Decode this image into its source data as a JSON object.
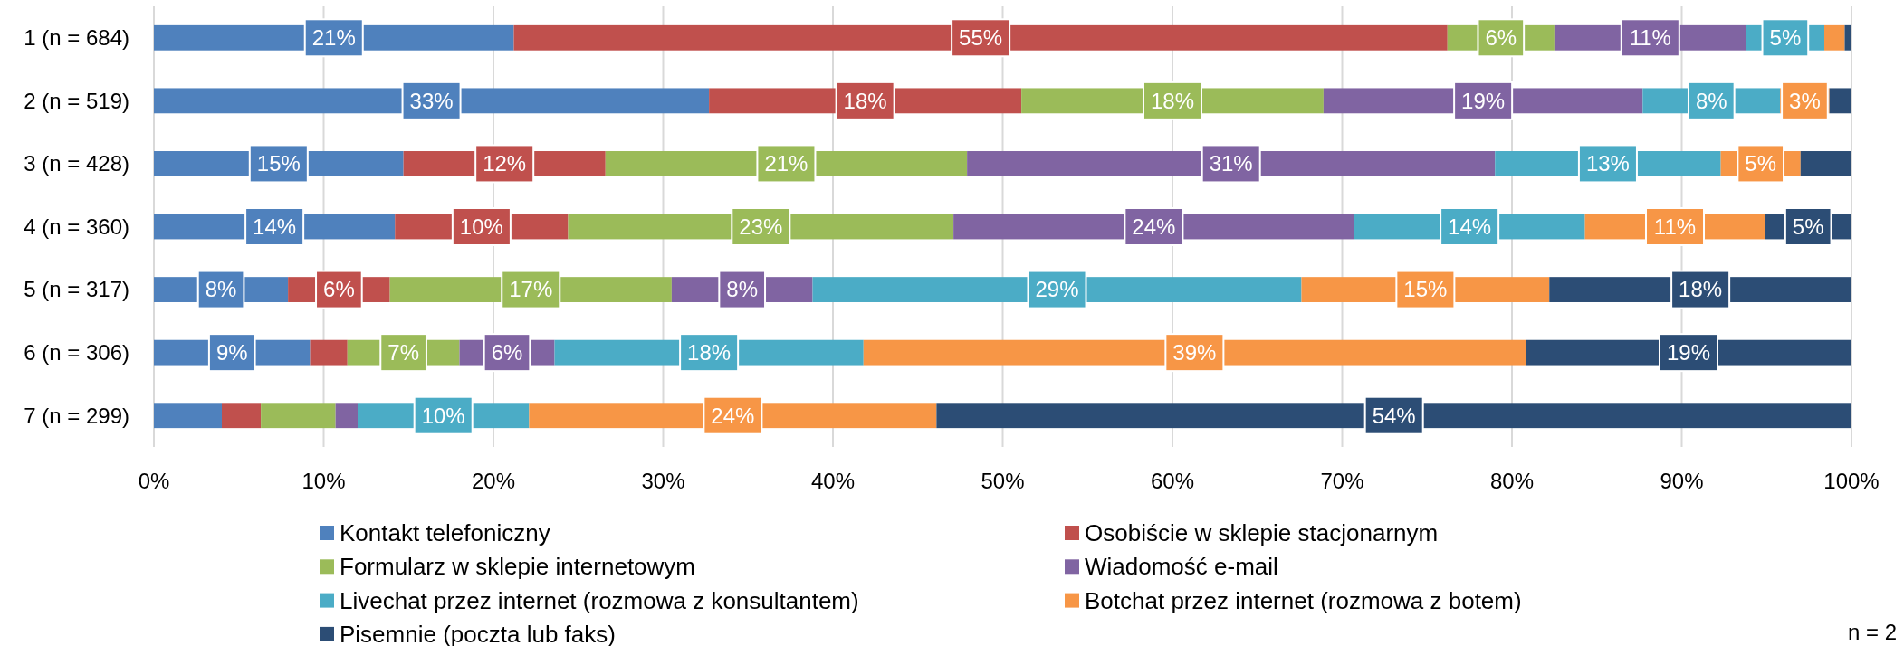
{
  "chart_data": {
    "type": "bar",
    "orientation": "horizontal",
    "stacked": true,
    "categories": [
      "1 (n = 684)",
      "2 (n = 519)",
      "3 (n = 428)",
      "4 (n = 360)",
      "5 (n = 317)",
      "6 (n = 306)",
      "7 (n = 299)"
    ],
    "xlim": [
      0,
      100
    ],
    "xticks": [
      {
        "value": 0,
        "label": "0%"
      },
      {
        "value": 10,
        "label": "10%"
      },
      {
        "value": 20,
        "label": "20%"
      },
      {
        "value": 30,
        "label": "30%"
      },
      {
        "value": 40,
        "label": "40%"
      },
      {
        "value": 50,
        "label": "50%"
      },
      {
        "value": 60,
        "label": "60%"
      },
      {
        "value": 70,
        "label": "70%"
      },
      {
        "value": 80,
        "label": "80%"
      },
      {
        "value": 90,
        "label": "90%"
      },
      {
        "value": 100,
        "label": "100%"
      }
    ],
    "grid": "x",
    "legend": "bottom",
    "series": [
      {
        "name": "Kontakt telefoniczny",
        "color": "#4f81bd",
        "values": [
          21.2,
          32.7,
          14.7,
          14.2,
          7.9,
          9.2,
          4.0
        ],
        "value_labels": [
          "21%",
          "33%",
          "15%",
          "14%",
          "8%",
          "9%",
          null
        ]
      },
      {
        "name": "Osobiście w sklepie stacjonarnym",
        "color": "#c0504d",
        "values": [
          55.0,
          18.4,
          11.9,
          10.2,
          6.0,
          2.2,
          2.3
        ],
        "value_labels": [
          "55%",
          "18%",
          "12%",
          "10%",
          "6%",
          null,
          null
        ]
      },
      {
        "name": "Formularz w sklepie internetowym",
        "color": "#9bbb59",
        "values": [
          6.3,
          17.8,
          21.3,
          22.7,
          16.6,
          6.6,
          4.4
        ],
        "value_labels": [
          "6%",
          "18%",
          "21%",
          "23%",
          "17%",
          "7%",
          null
        ]
      },
      {
        "name": "Wiadomość e-mail",
        "color": "#8064a2",
        "values": [
          11.3,
          18.8,
          31.1,
          23.6,
          8.3,
          5.6,
          1.3
        ],
        "value_labels": [
          "11%",
          "19%",
          "31%",
          "24%",
          "8%",
          "6%",
          null
        ]
      },
      {
        "name": "Livechat przez internet (rozmowa z konsultantem)",
        "color": "#4bacc6",
        "values": [
          4.6,
          8.1,
          13.3,
          13.6,
          28.8,
          18.2,
          10.1
        ],
        "value_labels": [
          "5%",
          "8%",
          "13%",
          "14%",
          "29%",
          "18%",
          "10%"
        ]
      },
      {
        "name": "Botchat przez internet (rozmowa z botem)",
        "color": "#f79646",
        "values": [
          1.2,
          2.9,
          4.7,
          10.6,
          14.6,
          39.0,
          24.0
        ],
        "value_labels": [
          null,
          "3%",
          "5%",
          "11%",
          "15%",
          "39%",
          "24%"
        ]
      },
      {
        "name": "Pisemnie (poczta lub faks)",
        "color": "#2c4d75",
        "values": [
          0.4,
          1.3,
          3.0,
          5.1,
          17.8,
          19.2,
          53.9
        ],
        "value_labels": [
          null,
          null,
          null,
          "5%",
          "18%",
          "19%",
          "54%"
        ]
      }
    ],
    "annotations": [
      "n = 2"
    ]
  }
}
